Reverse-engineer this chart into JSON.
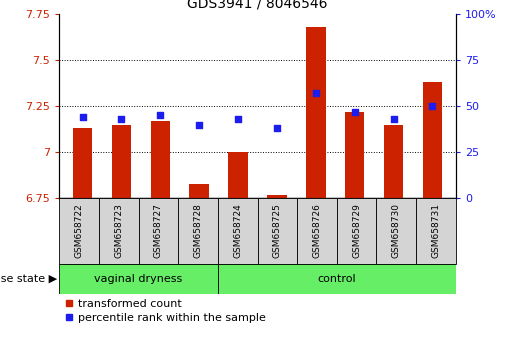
{
  "title": "GDS3941 / 8046546",
  "samples": [
    "GSM658722",
    "GSM658723",
    "GSM658727",
    "GSM658728",
    "GSM658724",
    "GSM658725",
    "GSM658726",
    "GSM658729",
    "GSM658730",
    "GSM658731"
  ],
  "bar_values": [
    7.13,
    7.15,
    7.17,
    6.83,
    7.0,
    6.77,
    7.68,
    7.22,
    7.15,
    7.38
  ],
  "dot_values": [
    44,
    43,
    45,
    40,
    43,
    38,
    57,
    47,
    43,
    50
  ],
  "ylim": [
    6.75,
    7.75
  ],
  "yticks": [
    6.75,
    7.0,
    7.25,
    7.5,
    7.75
  ],
  "ytick_labels": [
    "6.75",
    "7",
    "7.25",
    "7.5",
    "7.75"
  ],
  "y2lim": [
    0,
    100
  ],
  "y2ticks": [
    0,
    25,
    50,
    75,
    100
  ],
  "y2tick_labels": [
    "0",
    "25",
    "50",
    "75",
    "100%"
  ],
  "grid_lines": [
    7.0,
    7.25,
    7.5
  ],
  "bar_color": "#cc2200",
  "dot_color": "#1c1cee",
  "vaginal_count": 4,
  "control_count": 6,
  "label_vaginal": "vaginal dryness",
  "label_control": "control",
  "disease_state_label": "disease state",
  "legend_bar": "transformed count",
  "legend_dot": "percentile rank within the sample",
  "y_axis_color": "#cc2200",
  "y2_axis_color": "#1c1cee",
  "bar_bottom": 6.75,
  "gray_box_color": "#d4d4d4",
  "green_box_color": "#66ee66",
  "bar_width": 0.5
}
